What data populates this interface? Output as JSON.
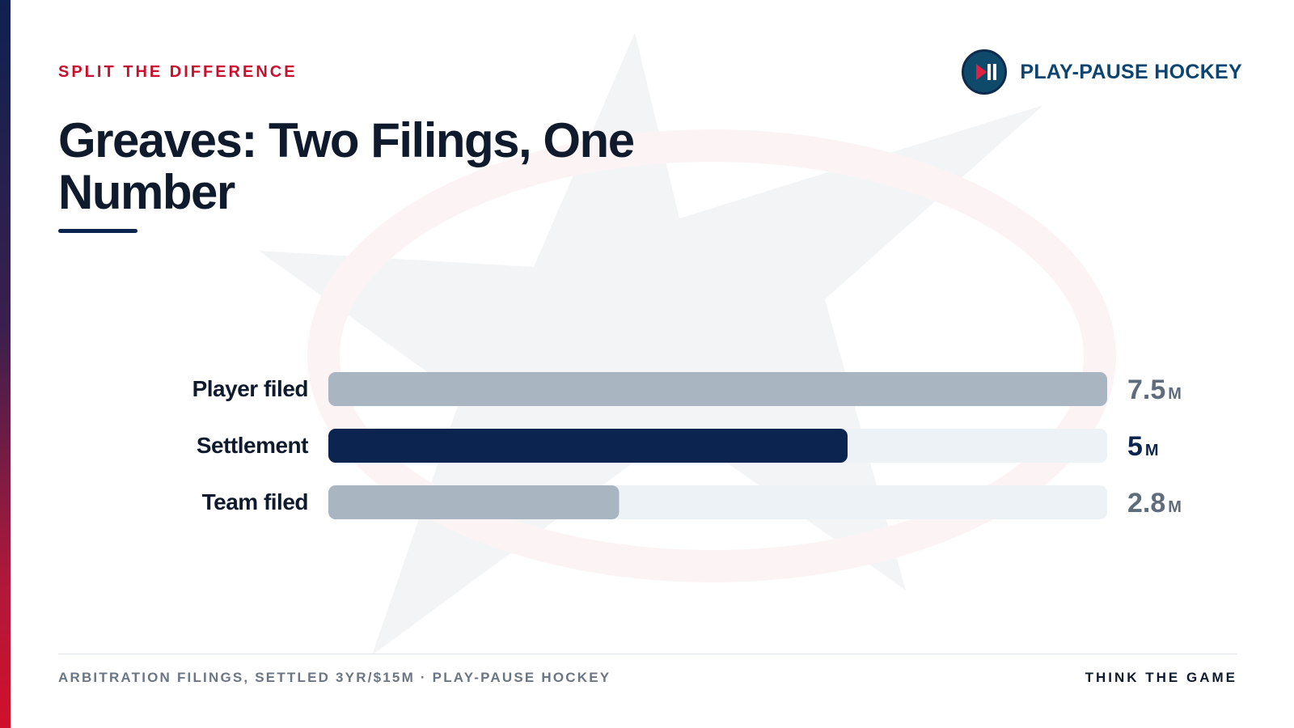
{
  "kicker": "SPLIT THE DIFFERENCE",
  "brand": {
    "name": "PLAY-PAUSE HOCKEY",
    "icon": "play-pause-icon"
  },
  "title": "Greaves: Two Filings, One Number",
  "chart_data": {
    "type": "bar",
    "orientation": "horizontal",
    "categories": [
      "Player filed",
      "Settlement",
      "Team filed"
    ],
    "values": [
      7.5,
      5,
      2.8
    ],
    "value_labels": [
      "7.5",
      "5",
      "2.8"
    ],
    "unit": "M",
    "xlim": [
      0,
      7.5
    ],
    "grid": false,
    "colors": [
      "#a9b6c2",
      "#0b2450",
      "#a9b6c2"
    ],
    "track_color": "#edf2f7",
    "label_colors": [
      "#5f6c7b",
      "#0b2450",
      "#5f6c7b"
    ]
  },
  "footer": {
    "source": "ARBITRATION FILINGS, SETTLED 3YR/$15M · PLAY-PAUSE HOCKEY",
    "tagline": "THINK THE GAME"
  },
  "colors": {
    "accent": "#c8102e",
    "navy": "#0b2450",
    "brand_text": "#0e4470"
  }
}
